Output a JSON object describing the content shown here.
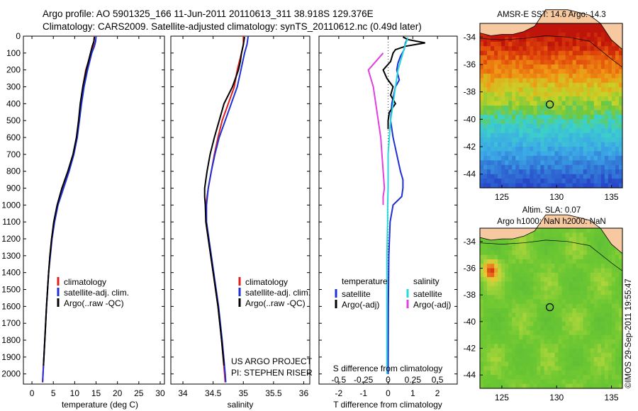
{
  "header": {
    "line1": "Argo profile: AO 5901325_166 11-Jun-2011 20110613_311 38.918S 129.376E",
    "line2": "Climatology: CARS2009. Satellite-adjusted climatology: synTS_20110612.nc (0.49d later)"
  },
  "colors": {
    "climatology": "#e11d1d",
    "satellite": "#1f2fd6",
    "argo": "#000000",
    "satellite_diff_salinity": "#27dada",
    "argo_diff_salinity": "#e040e0"
  },
  "chart_data": [
    {
      "id": "temperature",
      "type": "line",
      "xlabel": "temperature (deg C)",
      "ylabel": "",
      "xlim": [
        -2,
        31
      ],
      "ylim": [
        2060,
        0
      ],
      "xticks": [
        0,
        5,
        10,
        15,
        20,
        25,
        30
      ],
      "yticks": [
        0,
        100,
        200,
        300,
        400,
        500,
        600,
        700,
        800,
        900,
        1000,
        1100,
        1200,
        1300,
        1400,
        1500,
        1600,
        1700,
        1800,
        1900,
        2000
      ],
      "legend": [
        "climatology",
        "satellite-adj. clim.",
        "Argo(..raw -QC)"
      ],
      "legend_position": "lower-center",
      "series": [
        {
          "name": "climatology",
          "depth": [
            0,
            30,
            60,
            100,
            150,
            200,
            300,
            400,
            500,
            600,
            700,
            800,
            900,
            1000,
            1100,
            1200,
            1300,
            1400,
            1600,
            1800,
            2000,
            2050
          ],
          "values": [
            14.6,
            14.5,
            14.3,
            13.8,
            13.2,
            12.6,
            11.9,
            11.4,
            11.0,
            10.5,
            9.7,
            8.6,
            7.3,
            6.0,
            5.2,
            4.6,
            4.2,
            3.9,
            3.4,
            3.0,
            2.6,
            2.5
          ]
        },
        {
          "name": "satellite-adj. clim.",
          "depth": [
            0,
            30,
            60,
            100,
            150,
            200,
            300,
            400,
            500,
            600,
            700,
            800,
            900,
            1000,
            1100,
            1200,
            1300,
            1400,
            1600,
            1800,
            2000,
            2050
          ],
          "values": [
            15.0,
            14.9,
            14.6,
            14.0,
            13.5,
            13.0,
            12.2,
            11.6,
            11.1,
            10.6,
            9.8,
            8.7,
            7.4,
            6.1,
            5.3,
            4.7,
            4.3,
            3.9,
            3.4,
            3.0,
            2.6,
            2.5
          ]
        },
        {
          "name": "Argo(..raw -QC)",
          "depth": [
            5,
            30,
            60,
            100,
            150,
            200,
            300,
            400,
            500,
            600,
            700,
            800,
            900,
            1000,
            1100,
            1200,
            1300,
            1400,
            1600,
            1800,
            1950
          ],
          "values": [
            14.6,
            14.5,
            14.1,
            13.7,
            13.2,
            12.7,
            11.9,
            11.3,
            10.9,
            10.4,
            9.6,
            8.4,
            7.0,
            5.9,
            5.1,
            4.6,
            4.2,
            3.9,
            3.4,
            3.0,
            2.7
          ]
        }
      ]
    },
    {
      "id": "salinity",
      "type": "line",
      "xlabel": "salinity",
      "xlim": [
        33.8,
        36.1
      ],
      "ylim": [
        2060,
        0
      ],
      "xticks": [
        34,
        34.5,
        35,
        35.5,
        36
      ],
      "legend": [
        "climatology",
        "satellite-adj. clim.",
        "Argo(..raw -QC)"
      ],
      "legend_position": "lower-center",
      "series": [
        {
          "name": "climatology",
          "depth": [
            0,
            50,
            100,
            200,
            300,
            400,
            500,
            600,
            700,
            800,
            900,
            1000,
            1100,
            1200,
            1400,
            1600,
            1800,
            2000,
            2050
          ],
          "values": [
            35.0,
            35.0,
            34.97,
            34.9,
            34.85,
            34.75,
            34.65,
            34.58,
            34.52,
            34.47,
            34.42,
            34.38,
            34.38,
            34.42,
            34.5,
            34.58,
            34.64,
            34.69,
            34.7
          ]
        },
        {
          "name": "satellite-adj. clim.",
          "depth": [
            0,
            50,
            100,
            200,
            300,
            400,
            500,
            600,
            700,
            800,
            900,
            1000,
            1100,
            1200,
            1400,
            1600,
            1800,
            2000,
            2050
          ],
          "values": [
            35.08,
            35.06,
            35.02,
            34.96,
            34.9,
            34.8,
            34.7,
            34.6,
            34.53,
            34.47,
            34.42,
            34.39,
            34.39,
            34.43,
            34.51,
            34.59,
            34.65,
            34.7,
            34.71
          ]
        },
        {
          "name": "Argo(..raw -QC)",
          "depth": [
            5,
            50,
            100,
            150,
            200,
            300,
            400,
            500,
            600,
            700,
            800,
            900,
            950,
            1000,
            1100,
            1200,
            1400,
            1600,
            1800,
            1950
          ],
          "values": [
            35.02,
            35.0,
            34.97,
            34.95,
            34.92,
            34.82,
            34.68,
            34.6,
            34.52,
            34.45,
            34.4,
            34.36,
            34.36,
            34.37,
            34.38,
            34.42,
            34.5,
            34.58,
            34.64,
            34.68
          ]
        }
      ]
    },
    {
      "id": "difference",
      "type": "line",
      "xlabel": "T difference from climatology",
      "top_xlabel": "S difference from climatology",
      "xlim": [
        -2.8,
        2.8
      ],
      "ylim": [
        2060,
        0
      ],
      "xticks": [
        -2,
        -1,
        0,
        1,
        2
      ],
      "top_xticks": [
        "-0.5",
        "-0.25",
        "0",
        "0.25",
        "0.5"
      ],
      "top_xtick_positions": [
        -2,
        -1,
        0,
        1,
        2
      ],
      "legend": {
        "temperature_header": "temperature",
        "salinity_header": "salinity",
        "temperature": [
          "satellite",
          "Argo(-adj)"
        ],
        "salinity": [
          "satellite",
          "Argo(-adj)"
        ]
      },
      "series": [
        {
          "name": "temperature satellite",
          "depth": [
            10,
            40,
            80,
            120,
            160,
            200,
            260,
            300,
            400,
            500,
            600,
            700,
            800,
            850,
            900,
            950,
            1000,
            1100,
            1300,
            1600,
            2000
          ],
          "values": [
            0.8,
            0.7,
            0.65,
            0.5,
            0.4,
            0.35,
            0.45,
            0.3,
            0.15,
            0.1,
            0.2,
            0.35,
            0.5,
            0.6,
            0.6,
            0.55,
            0.2,
            0.08,
            0.03,
            0.01,
            0.0
          ]
        },
        {
          "name": "temperature Argo(-adj)",
          "depth": [
            5,
            20,
            40,
            60,
            80,
            100,
            150,
            200,
            250,
            300,
            350,
            400,
            450,
            500,
            550
          ],
          "values": [
            0.6,
            0.8,
            1.5,
            0.7,
            0.3,
            0.2,
            0.1,
            -0.2,
            -0.05,
            0.2,
            0.1,
            0.3,
            0.05,
            0.0,
            0.0
          ]
        },
        {
          "name": "salinity satellite",
          "depth": [
            10,
            50,
            100,
            150,
            200,
            300,
            400,
            500,
            600,
            700,
            800,
            900,
            1000,
            1100,
            1300,
            1600,
            2000
          ],
          "values": [
            0.8,
            0.7,
            0.6,
            0.5,
            0.4,
            0.3,
            0.2,
            0.1,
            0.05,
            0.0,
            0.0,
            0.0,
            -0.02,
            -0.02,
            -0.05,
            -0.05,
            -0.05
          ]
        },
        {
          "name": "salinity Argo(-adj)",
          "depth": [
            100,
            150,
            200,
            250,
            300,
            400,
            500,
            600,
            700,
            800,
            900,
            950,
            1000
          ],
          "values": [
            -0.2,
            -0.5,
            -0.8,
            -0.7,
            -0.6,
            -0.5,
            -0.4,
            -0.3,
            -0.25,
            -0.2,
            -0.15,
            -0.2,
            -0.2
          ]
        }
      ]
    },
    {
      "id": "sst-map",
      "type": "heatmap",
      "title": "AMSR-E SST: 14.6  Argo: 14.3",
      "xlim": [
        123,
        136
      ],
      "ylim": [
        -45,
        -33
      ],
      "xticks": [
        125,
        130,
        135
      ],
      "yticks": [
        -34,
        -36,
        -38,
        -40,
        -42,
        -44
      ],
      "marker": {
        "lon": 129.376,
        "lat": -38.918
      }
    },
    {
      "id": "sla-map",
      "type": "heatmap",
      "title": "Altim. SLA: 0.07",
      "subtitle": "Argo h1000: NaN h2000: NaN",
      "xlim": [
        123,
        136
      ],
      "ylim": [
        -45,
        -33
      ],
      "xticks": [
        125,
        130,
        135
      ],
      "yticks": [
        -34,
        -36,
        -38,
        -40,
        -42,
        -44
      ],
      "marker": {
        "lon": 129.376,
        "lat": -38.918
      }
    }
  ],
  "annotations": {
    "project_line1": "US ARGO PROJECT",
    "project_line2": "PI: STEPHEN RISER",
    "credit": "©IMOS 29-Sep-2011 19:55:47"
  }
}
